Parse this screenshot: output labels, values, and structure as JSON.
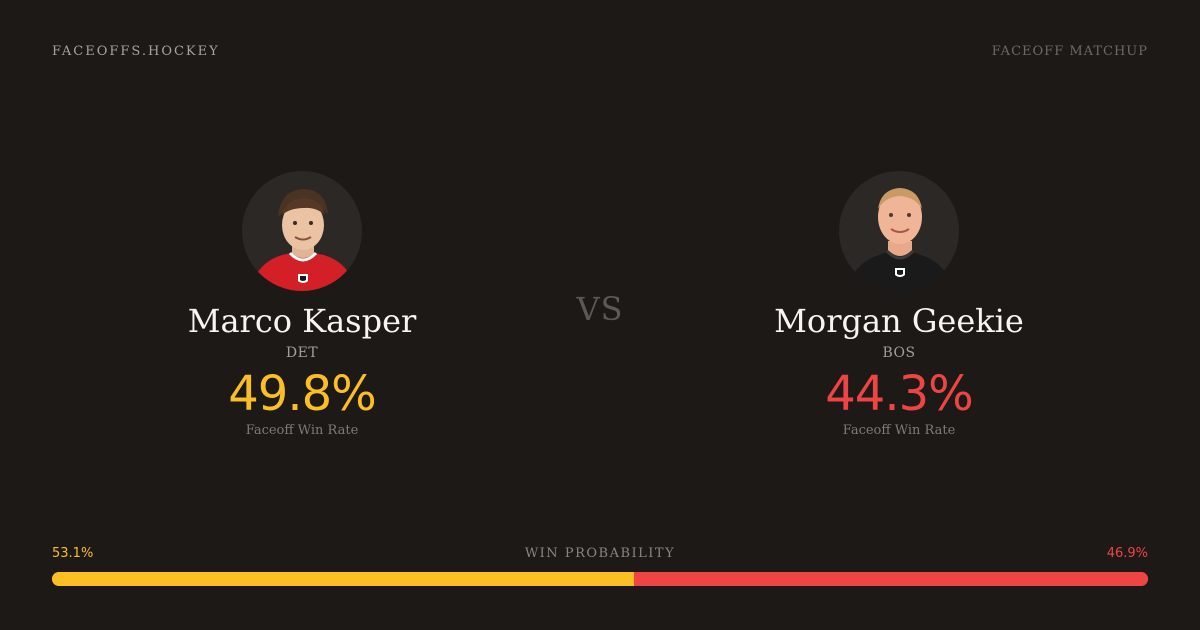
{
  "header": {
    "brand": "FACEOFFS.HOCKEY",
    "label": "FACEOFF MATCHUP"
  },
  "matchup": {
    "vs": "VS",
    "left": {
      "name": "Marco Kasper",
      "team": "DET",
      "rate": "49.8%",
      "rate_label": "Faceoff Win Rate",
      "color": "#fbbf24",
      "jersey_color": "#d32027"
    },
    "right": {
      "name": "Morgan Geekie",
      "team": "BOS",
      "rate": "44.3%",
      "rate_label": "Faceoff Win Rate",
      "color": "#ef4444",
      "jersey_color": "#1a1a1a"
    }
  },
  "probability": {
    "title": "WIN PROBABILITY",
    "left_label": "53.1%",
    "right_label": "46.9%",
    "left_value": 53.1,
    "right_value": 46.9
  }
}
